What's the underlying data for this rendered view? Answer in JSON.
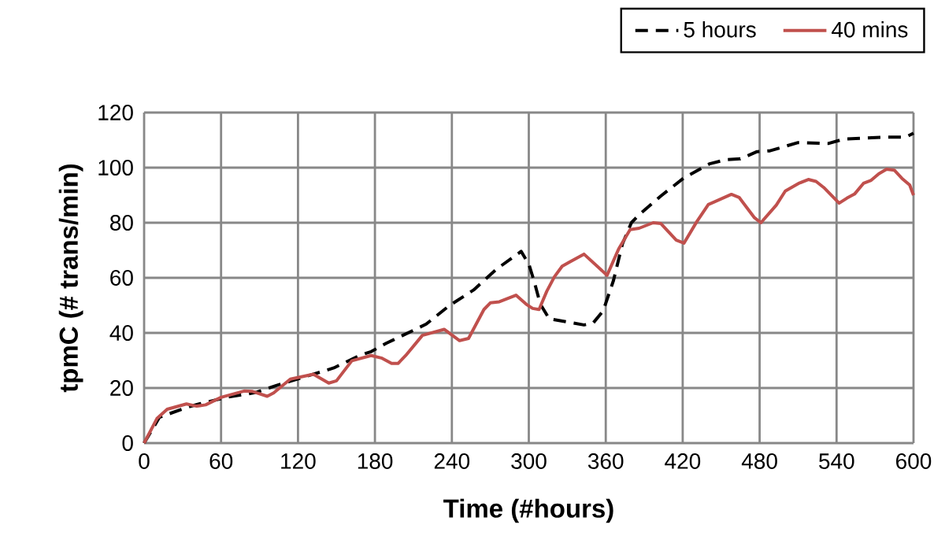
{
  "chart_data": {
    "type": "line",
    "xlabel": "Time (#hours)",
    "ylabel": "tpmC (# trans/min)",
    "xlim": [
      0,
      600
    ],
    "xticks": [
      0,
      60,
      120,
      180,
      240,
      300,
      360,
      420,
      480,
      540,
      600
    ],
    "ylim": [
      0,
      120
    ],
    "yticks": [
      0,
      20,
      40,
      60,
      80,
      100,
      120
    ],
    "grid": true,
    "legend": "top right",
    "marker": "none",
    "series": [
      {
        "name": "5 hours",
        "color": "#000000",
        "line_style": "dashed",
        "x": [
          0,
          12,
          35,
          43,
          64,
          80,
          88,
          103,
          113,
          134,
          148,
          168,
          177,
          189,
          195,
          220,
          238,
          257,
          275,
          294,
          300,
          304,
          309,
          316,
          343,
          350,
          358,
          366,
          373,
          380,
          386,
          403,
          421,
          441,
          454,
          465,
          478,
          488,
          510,
          534,
          546,
          579,
          594,
          600
        ],
        "values": [
          0,
          9.4,
          13.2,
          14.2,
          16.6,
          17.8,
          18.5,
          20.9,
          22.3,
          25.3,
          27.3,
          31.8,
          33.2,
          36.3,
          37.6,
          43.2,
          49.9,
          55.6,
          63.2,
          69.6,
          65,
          59,
          50.4,
          45.1,
          42.9,
          43.5,
          48,
          59,
          72.3,
          80,
          82.9,
          89.7,
          96.3,
          101.4,
          102.9,
          103.2,
          105.8,
          106.1,
          109.1,
          108.8,
          110.4,
          111.1,
          111.1,
          112.5
        ]
      },
      {
        "name": "40 mins",
        "color": "#c0504d",
        "line_style": "solid",
        "x": [
          0,
          10,
          18,
          33,
          41,
          48,
          60,
          78,
          84,
          96,
          101,
          114,
          132,
          144,
          150,
          162,
          177,
          185,
          193,
          198,
          204,
          217,
          234,
          246,
          253,
          265,
          270,
          277,
          290,
          298,
          303,
          308,
          314,
          320,
          326,
          332,
          343,
          355,
          361,
          370,
          379,
          386,
          397,
          403,
          415,
          421,
          431,
          440,
          458,
          464,
          476,
          481,
          493,
          500,
          511,
          518,
          524,
          530,
          542,
          548,
          554,
          561,
          567,
          573,
          579,
          585,
          591,
          597,
          600
        ],
        "values": [
          0,
          8.9,
          12.3,
          14.2,
          13.4,
          13.9,
          16.6,
          18.9,
          18.8,
          17,
          18.2,
          23.2,
          25,
          21.8,
          22.6,
          29.9,
          31.8,
          30.9,
          28.9,
          28.9,
          31.8,
          39.1,
          41.3,
          37.2,
          38,
          48.5,
          50.9,
          51.3,
          53.7,
          50.4,
          48.9,
          48.5,
          55.1,
          60.4,
          64.2,
          65.8,
          68.6,
          63.5,
          60.9,
          70.4,
          77.5,
          78,
          80,
          79.7,
          73.7,
          72.6,
          80.4,
          86.6,
          90.3,
          89.2,
          81.8,
          80,
          86.4,
          91.5,
          94.4,
          95.7,
          95,
          92.8,
          87.1,
          88.9,
          90.4,
          94.3,
          95.4,
          97.8,
          99.4,
          99.1,
          96.1,
          93.7,
          90
        ]
      }
    ]
  }
}
